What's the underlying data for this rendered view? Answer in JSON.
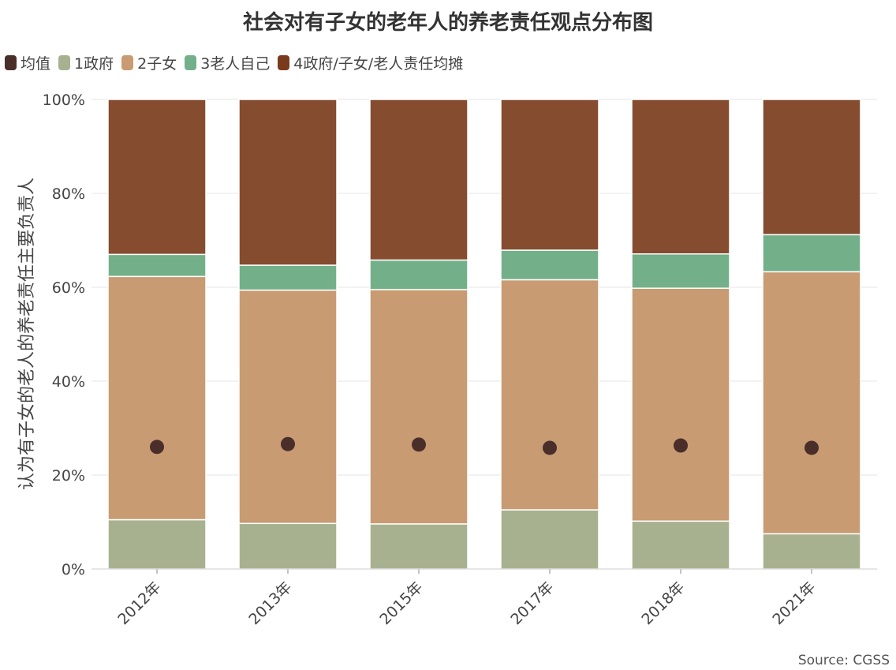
{
  "chart_data": {
    "type": "bar",
    "stacked": true,
    "title": "社会对有子女的老年人的养老责任观点分布图",
    "ylabel": "认为有子女的老人的养老责任主要负责人",
    "xlabel": "",
    "ylim": [
      0,
      100
    ],
    "y_ticks": [
      "0%",
      "20%",
      "40%",
      "60%",
      "80%",
      "100%"
    ],
    "categories": [
      "2012年",
      "2013年",
      "2015年",
      "2017年",
      "2018年",
      "2021年"
    ],
    "series": [
      {
        "name": "1政府",
        "color": "#a8b18f",
        "values": [
          10.5,
          9.7,
          9.6,
          12.6,
          10.2,
          7.5
        ]
      },
      {
        "name": "2子女",
        "color": "#c89b72",
        "values": [
          51.8,
          49.7,
          49.9,
          49.0,
          49.6,
          55.8
        ]
      },
      {
        "name": "3老人自己",
        "color": "#73b08a",
        "values": [
          4.7,
          5.3,
          6.3,
          6.3,
          7.3,
          7.9
        ]
      },
      {
        "name": "4政府/子女/老人责任均摊",
        "color": "#854c2f",
        "values": [
          33.0,
          35.3,
          34.2,
          32.1,
          32.9,
          28.8
        ]
      }
    ],
    "mean_series": {
      "name": "均值",
      "color": "#4a2e2a",
      "values": [
        26.0,
        26.6,
        26.5,
        25.8,
        26.3,
        25.8
      ]
    },
    "legend_position": "top-left",
    "grid": true,
    "source": "Source: CGSS"
  }
}
